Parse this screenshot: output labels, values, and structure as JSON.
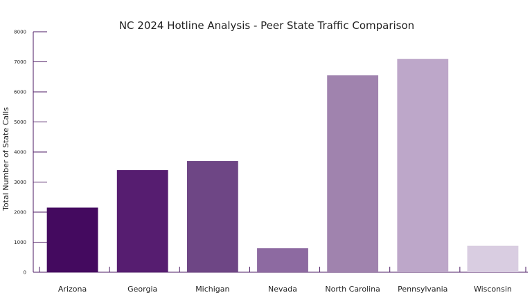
{
  "chart_data": {
    "type": "bar",
    "title": "NC 2024 Hotline Analysis - Peer State Traffic Comparison",
    "xlabel": "",
    "ylabel": "Total Number of State Calls",
    "categories": [
      "Arizona",
      "Georgia",
      "Michigan",
      "Nevada",
      "North Carolina",
      "Pennsylvania",
      "Wisconsin"
    ],
    "values": [
      2150,
      3400,
      3700,
      800,
      6550,
      7100,
      880
    ],
    "colors": [
      "#440a5f",
      "#561d70",
      "#6e4685",
      "#8d6aa1",
      "#a083ae",
      "#bda7c9",
      "#d9cde1"
    ],
    "ylim": [
      0,
      8000
    ],
    "yticks": [
      0,
      1000,
      2000,
      3000,
      4000,
      5000,
      6000,
      7000,
      8000
    ],
    "axis_color": "#4b1a63",
    "grid": false,
    "legend": "none"
  }
}
